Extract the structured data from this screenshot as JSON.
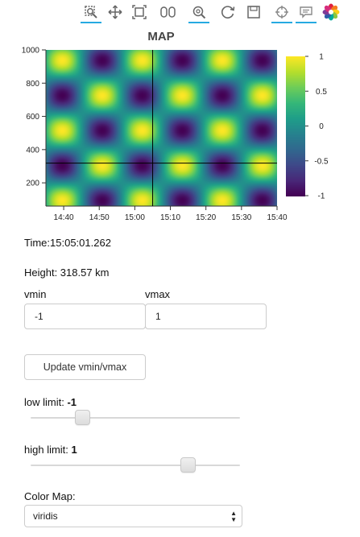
{
  "toolbar": {
    "tools": [
      {
        "name": "box-zoom-icon",
        "active": true
      },
      {
        "name": "pan-icon",
        "active": false
      },
      {
        "name": "box-select-icon",
        "active": false
      },
      {
        "name": "lasso-select-icon",
        "active": false
      },
      {
        "name": "wheel-zoom-icon",
        "active": true
      },
      {
        "name": "reset-icon",
        "active": false
      },
      {
        "name": "save-icon",
        "active": false
      },
      {
        "name": "crosshair-icon",
        "active": true
      },
      {
        "name": "hover-icon",
        "active": true
      },
      {
        "name": "bokeh-logo-icon",
        "active": false
      }
    ],
    "accent": "#26aae1"
  },
  "chart_data": {
    "type": "heatmap",
    "title": "MAP",
    "x_ticks": [
      "14:40",
      "14:50",
      "15:00",
      "15:10",
      "15:20",
      "15:30",
      "15:40"
    ],
    "y_ticks": [
      "200",
      "400",
      "600",
      "800",
      "1000"
    ],
    "xlim": [
      "14:35",
      "15:40"
    ],
    "ylim": [
      60,
      1000
    ],
    "colorbar": {
      "colormap": "viridis",
      "ticks": [
        "1",
        "0.5",
        "0",
        "-0.5",
        "-1"
      ],
      "range": [
        -1,
        1
      ]
    },
    "crosshair": {
      "x": "15:05:01.262",
      "y": 318.57
    }
  },
  "readout": {
    "time": "Time:15:05:01.262",
    "height": "Height: 318.57 km"
  },
  "controls": {
    "vmin_label": "vmin",
    "vmin_value": "-1",
    "vmax_label": "vmax",
    "vmax_value": "1",
    "update_button": "Update vmin/vmax",
    "low_label": "low limit: ",
    "low_value": "-1",
    "low_range": [
      -1,
      1
    ],
    "high_label": "high limit: ",
    "high_value": "1",
    "high_range": [
      -1,
      1
    ],
    "colormap_label": "Color Map:",
    "colormap_value": "viridis"
  }
}
